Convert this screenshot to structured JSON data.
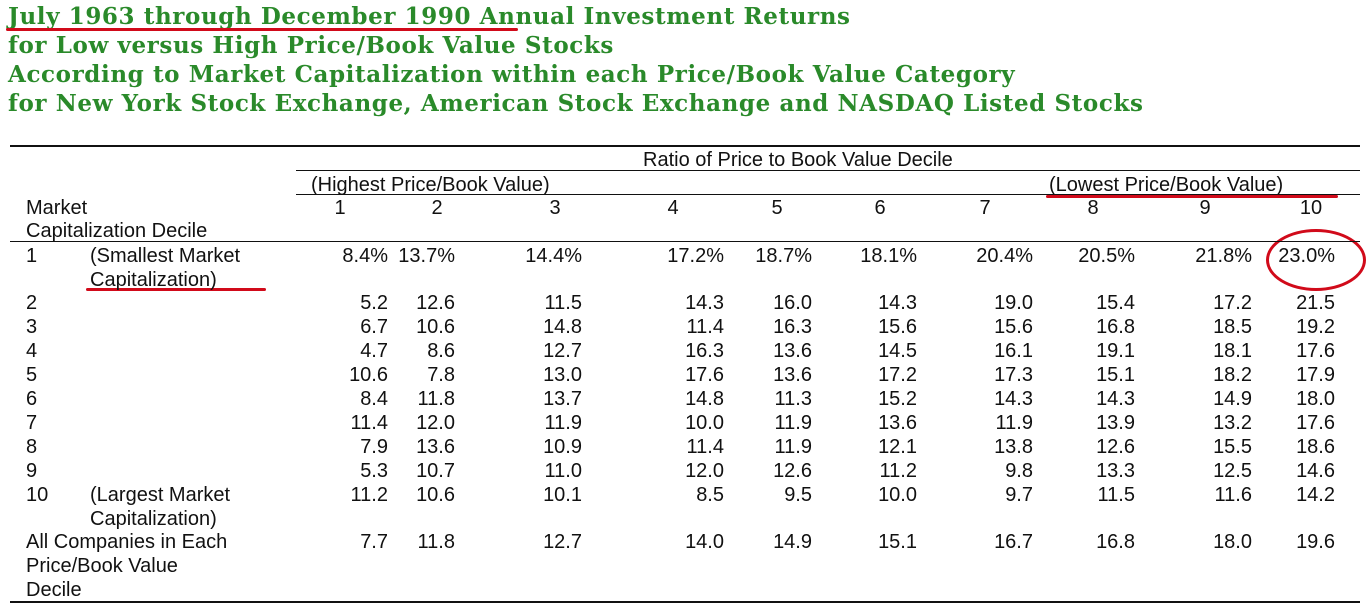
{
  "title_lines": [
    "July 1963 through December 1990 Annual Investment Returns",
    "for Low versus High Price/Book Value Stocks",
    "According to Market Capitalization within each Price/Book Value Category",
    "for New York Stock Exchange, American Stock Exchange and NASDAQ Listed Stocks"
  ],
  "table": {
    "super_header": "Ratio of Price to Book Value Decile",
    "highest_label": "(Highest Price/Book Value)",
    "lowest_label": "(Lowest Price/Book Value)",
    "row_header_lines": [
      "Market",
      "Capitalization Decile"
    ],
    "columns": [
      "1",
      "2",
      "3",
      "4",
      "5",
      "6",
      "7",
      "8",
      "9",
      "10"
    ],
    "rows": [
      {
        "label": "1",
        "note_lines": [
          "(Smallest Market",
          "Capitalization)"
        ],
        "values": [
          "8.4%",
          "13.7%",
          "14.4%",
          "17.2%",
          "18.7%",
          "18.1%",
          "20.4%",
          "20.5%",
          "21.8%",
          "23.0%"
        ]
      },
      {
        "label": "2",
        "note_lines": [],
        "values": [
          "5.2",
          "12.6",
          "11.5",
          "14.3",
          "16.0",
          "14.3",
          "19.0",
          "15.4",
          "17.2",
          "21.5"
        ]
      },
      {
        "label": "3",
        "note_lines": [],
        "values": [
          "6.7",
          "10.6",
          "14.8",
          "11.4",
          "16.3",
          "15.6",
          "15.6",
          "16.8",
          "18.5",
          "19.2"
        ]
      },
      {
        "label": "4",
        "note_lines": [],
        "values": [
          "4.7",
          "8.6",
          "12.7",
          "16.3",
          "13.6",
          "14.5",
          "16.1",
          "19.1",
          "18.1",
          "17.6"
        ]
      },
      {
        "label": "5",
        "note_lines": [],
        "values": [
          "10.6",
          "7.8",
          "13.0",
          "17.6",
          "13.6",
          "17.2",
          "17.3",
          "15.1",
          "18.2",
          "17.9"
        ]
      },
      {
        "label": "6",
        "note_lines": [],
        "values": [
          "8.4",
          "11.8",
          "13.7",
          "14.8",
          "11.3",
          "15.2",
          "14.3",
          "14.3",
          "14.9",
          "18.0"
        ]
      },
      {
        "label": "7",
        "note_lines": [],
        "values": [
          "11.4",
          "12.0",
          "11.9",
          "10.0",
          "11.9",
          "13.6",
          "11.9",
          "13.9",
          "13.2",
          "17.6"
        ]
      },
      {
        "label": "8",
        "note_lines": [],
        "values": [
          "7.9",
          "13.6",
          "10.9",
          "11.4",
          "11.9",
          "12.1",
          "13.8",
          "12.6",
          "15.5",
          "18.6"
        ]
      },
      {
        "label": "9",
        "note_lines": [],
        "values": [
          "5.3",
          "10.7",
          "11.0",
          "12.0",
          "12.6",
          "11.2",
          "9.8",
          "13.3",
          "12.5",
          "14.6"
        ]
      },
      {
        "label": "10",
        "note_lines": [
          "(Largest Market",
          "Capitalization)"
        ],
        "values": [
          "11.2",
          "10.6",
          "10.1",
          "8.5",
          "9.5",
          "10.0",
          "9.7",
          "11.5",
          "11.6",
          "14.2"
        ]
      }
    ],
    "all_companies": {
      "label_lines": [
        "All Companies in Each",
        "Price/Book Value",
        "Decile"
      ],
      "values": [
        "7.7",
        "11.8",
        "12.7",
        "14.0",
        "14.9",
        "15.1",
        "16.7",
        "16.8",
        "18.0",
        "19.6"
      ]
    }
  },
  "colors": {
    "title": "#2a8a2a",
    "annotation": "#d10a1a",
    "text": "#111111"
  }
}
